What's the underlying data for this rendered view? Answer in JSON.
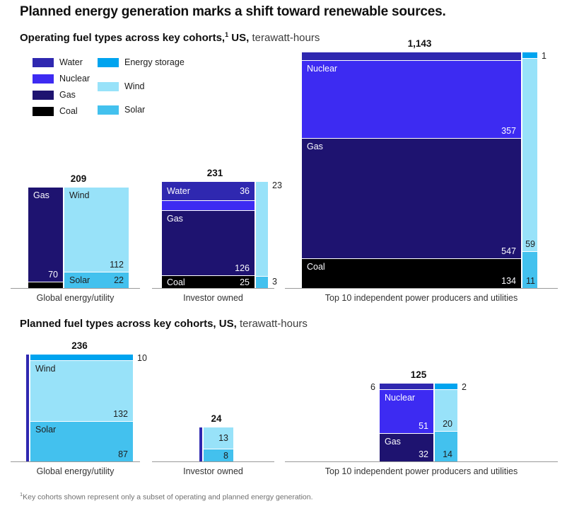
{
  "title": "Planned energy generation marks a shift toward renewable sources.",
  "sections": {
    "operating": {
      "heading_bold": "Operating fuel types across key cohorts,",
      "heading_sup": "1",
      "heading_bold_2": " US,",
      "heading_rest": " terawatt-hours"
    },
    "planned": {
      "heading_bold": "Planned fuel types across key cohorts, US,",
      "heading_rest": " terawatt-hours"
    }
  },
  "legend": {
    "columns": [
      {
        "items": [
          {
            "fuel": "Water"
          },
          {
            "fuel": "Nuclear"
          },
          {
            "fuel": "Gas"
          },
          {
            "fuel": "Coal"
          }
        ]
      },
      {
        "items": [
          {
            "fuel": "Energy storage"
          },
          {
            "fuel": "Wind"
          },
          {
            "fuel": "Solar"
          }
        ]
      }
    ]
  },
  "fuel_colors": {
    "Water": "#2f28b0",
    "Nuclear": "#3d2bf2",
    "Gas": "#1e1370",
    "Coal": "#000000",
    "Energy storage": "#00a4ef",
    "Wind": "#98e2f9",
    "Solar": "#43c1ee"
  },
  "chart_data": [
    {
      "id": "operating-global",
      "section": "operating",
      "type": "marimekko",
      "total": 209,
      "total_label": "209",
      "axis_label": "Global energy/utility",
      "columns": [
        {
          "segments": [
            {
              "fuel": "Gas",
              "value": 70,
              "value_label": "70",
              "show_name": true,
              "show_value": true,
              "label_style": "light"
            },
            {
              "fuel": "Coal",
              "value": 5,
              "estimated": true,
              "show_name": false,
              "show_value": false
            }
          ]
        },
        {
          "segments": [
            {
              "fuel": "Wind",
              "value": 112,
              "value_label": "112",
              "show_name": true,
              "show_value": true,
              "label_style": "dark"
            },
            {
              "fuel": "Solar",
              "value": 22,
              "value_label": "22",
              "show_name": true,
              "show_value": true,
              "label_style": "dark"
            }
          ]
        }
      ]
    },
    {
      "id": "operating-investor",
      "section": "operating",
      "type": "marimekko",
      "total": 231,
      "total_label": "231",
      "axis_label": "Investor owned",
      "columns": [
        {
          "segments": [
            {
              "fuel": "Water",
              "value": 36,
              "value_label": "36",
              "show_name": true,
              "show_value": true,
              "label_style": "light"
            },
            {
              "fuel": "Nuclear",
              "value": 18,
              "estimated": true,
              "show_name": false,
              "show_value": false
            },
            {
              "fuel": "Gas",
              "value": 126,
              "value_label": "126",
              "show_name": true,
              "show_value": true,
              "label_style": "light"
            },
            {
              "fuel": "Coal",
              "value": 25,
              "value_label": "25",
              "show_name": true,
              "show_value": true,
              "label_style": "light"
            }
          ]
        },
        {
          "segments": [
            {
              "fuel": "Wind",
              "value": 23,
              "value_label": "23",
              "show_name": false,
              "show_value": true,
              "label_style": "dark",
              "label_pos": "outside-right"
            },
            {
              "fuel": "Solar",
              "value": 3,
              "value_label": "3",
              "show_name": false,
              "show_value": true,
              "label_style": "dark",
              "label_pos": "outside-right"
            }
          ]
        }
      ]
    },
    {
      "id": "operating-top10",
      "section": "operating",
      "type": "marimekko",
      "total": 1143,
      "total_label": "1,143",
      "axis_label": "Top 10 independent power producers and utilities",
      "columns": [
        {
          "segments": [
            {
              "fuel": "Water",
              "value": 34,
              "estimated": true,
              "show_name": false,
              "show_value": false
            },
            {
              "fuel": "Nuclear",
              "value": 357,
              "value_label": "357",
              "show_name": true,
              "show_value": true,
              "label_style": "light"
            },
            {
              "fuel": "Gas",
              "value": 547,
              "value_label": "547",
              "show_name": true,
              "show_value": true,
              "label_style": "light"
            },
            {
              "fuel": "Coal",
              "value": 134,
              "value_label": "134",
              "show_name": true,
              "show_value": true,
              "label_style": "light"
            }
          ]
        },
        {
          "segments": [
            {
              "fuel": "Energy storage",
              "value": 1,
              "value_label": "1",
              "show_name": false,
              "show_value": true,
              "label_style": "dark",
              "label_pos": "outside-right"
            },
            {
              "fuel": "Wind",
              "value": 59,
              "value_label": "59",
              "show_name": false,
              "show_value": true,
              "label_style": "dark"
            },
            {
              "fuel": "Solar",
              "value": 11,
              "value_label": "11",
              "show_name": false,
              "show_value": true,
              "label_style": "dark"
            }
          ]
        }
      ]
    },
    {
      "id": "planned-global",
      "section": "planned",
      "type": "marimekko",
      "total": 236,
      "total_label": "236",
      "axis_label": "Global energy/utility",
      "columns": [
        {
          "segments": [
            {
              "fuel": "Water",
              "value": 7,
              "estimated": true,
              "show_name": false,
              "show_value": false
            }
          ]
        },
        {
          "segments": [
            {
              "fuel": "Energy storage",
              "value": 10,
              "value_label": "10",
              "show_name": false,
              "show_value": true,
              "label_style": "dark",
              "label_pos": "outside-right"
            },
            {
              "fuel": "Wind",
              "value": 132,
              "value_label": "132",
              "show_name": true,
              "show_value": true,
              "label_style": "dark"
            },
            {
              "fuel": "Solar",
              "value": 87,
              "value_label": "87",
              "show_name": true,
              "show_value": true,
              "label_style": "dark"
            }
          ]
        }
      ]
    },
    {
      "id": "planned-investor",
      "section": "planned",
      "type": "marimekko",
      "total": 24,
      "total_label": "24",
      "axis_label": "Investor owned",
      "columns": [
        {
          "segments": [
            {
              "fuel": "Water",
              "value": 3,
              "estimated": true,
              "show_name": false,
              "show_value": false
            }
          ]
        },
        {
          "segments": [
            {
              "fuel": "Wind",
              "value": 13,
              "value_label": "13",
              "show_name": false,
              "show_value": true,
              "label_style": "dark"
            },
            {
              "fuel": "Solar",
              "value": 8,
              "value_label": "8",
              "show_name": false,
              "show_value": true,
              "label_style": "dark"
            }
          ]
        }
      ]
    },
    {
      "id": "planned-top10",
      "section": "planned",
      "type": "marimekko",
      "total": 125,
      "total_label": "125",
      "axis_label": "Top 10 independent power producers and utilities",
      "columns": [
        {
          "segments": [
            {
              "fuel": "Water",
              "value": 6,
              "value_label": "6",
              "show_name": false,
              "show_value": true,
              "label_style": "dark",
              "label_pos": "outside-left"
            },
            {
              "fuel": "Nuclear",
              "value": 51,
              "value_label": "51",
              "show_name": true,
              "show_value": true,
              "label_style": "light"
            },
            {
              "fuel": "Gas",
              "value": 32,
              "value_label": "32",
              "show_name": true,
              "show_value": true,
              "label_style": "light"
            }
          ]
        },
        {
          "segments": [
            {
              "fuel": "Energy storage",
              "value": 2,
              "value_label": "2",
              "show_name": false,
              "show_value": true,
              "label_style": "dark",
              "label_pos": "outside-right"
            },
            {
              "fuel": "Wind",
              "value": 20,
              "value_label": "20",
              "show_name": false,
              "show_value": true,
              "label_style": "dark"
            },
            {
              "fuel": "Solar",
              "value": 14,
              "value_label": "14",
              "show_name": false,
              "show_value": true,
              "label_style": "dark"
            }
          ]
        }
      ]
    }
  ],
  "footnote": {
    "sup": "1",
    "text": "Key cohorts shown represent only a subset of operating and planned energy generation."
  }
}
